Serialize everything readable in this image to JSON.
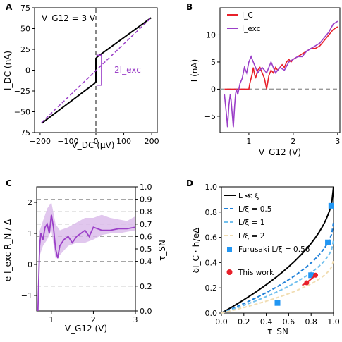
{
  "panels": [
    "A",
    "B",
    "C",
    "D"
  ],
  "chart_data": [
    {
      "panel": "A",
      "type": "line",
      "annotation": "V_G12 = 3 V",
      "xlabel": "V_DC (μV)",
      "ylabel": "I_DC (nA)",
      "xlim": [
        -220,
        220
      ],
      "ylim": [
        -75,
        75
      ],
      "xticks": [
        -200,
        -100,
        0,
        100,
        200
      ],
      "yticks": [
        -75,
        -50,
        -25,
        0,
        25,
        50,
        75
      ],
      "gap_label": "2I_exc",
      "colors": {
        "data": "#000000",
        "fit": "#9b3fc8",
        "guide": "#888888"
      },
      "series": [
        {
          "style": "solid-black",
          "x": [
            -195,
            -5,
            -5,
            0,
            0,
            5,
            5,
            198
          ],
          "y": [
            -64,
            -16,
            -16,
            -14,
            14,
            16,
            16,
            63
          ]
        },
        {
          "style": "dashed-purple",
          "x": [
            -195,
            198
          ],
          "y": [
            -63,
            63
          ]
        }
      ]
    },
    {
      "panel": "B",
      "type": "line",
      "xlabel": "V_G12 (V)",
      "ylabel": "I (nA)",
      "xlim": [
        0.35,
        3.05
      ],
      "ylim": [
        -8,
        15
      ],
      "xticks": [
        1,
        2,
        3
      ],
      "yticks": [
        -5,
        0,
        5,
        10
      ],
      "legend": [
        "I_C",
        "I_exc"
      ],
      "colors": {
        "I_C": "#e8202a",
        "I_exc": "#9b3fc8"
      },
      "series": [
        {
          "name": "I_C",
          "x": [
            0.45,
            1.0,
            1.02,
            1.05,
            1.08,
            1.1,
            1.12,
            1.15,
            1.2,
            1.25,
            1.3,
            1.35,
            1.4,
            1.45,
            1.5,
            1.55,
            1.6,
            1.65,
            1.7,
            1.75,
            1.8,
            1.85,
            1.9,
            1.95,
            2.0,
            2.1,
            2.2,
            2.3,
            2.4,
            2.5,
            2.6,
            2.7,
            2.8,
            2.9,
            3.0
          ],
          "y": [
            0,
            0,
            1,
            2,
            3,
            4,
            3,
            2,
            3.5,
            4,
            3,
            2,
            0,
            2.5,
            3.5,
            3,
            4,
            3.5,
            4,
            4.5,
            4,
            5,
            5.5,
            5,
            5.5,
            6,
            6.5,
            7,
            7.5,
            7.5,
            8,
            9,
            10,
            11,
            11.5
          ]
        },
        {
          "name": "I_exc",
          "x": [
            0.45,
            0.5,
            0.52,
            0.55,
            0.58,
            0.6,
            0.65,
            0.68,
            0.7,
            0.72,
            0.75,
            0.8,
            0.85,
            0.9,
            0.95,
            1.0,
            1.05,
            1.1,
            1.15,
            1.2,
            1.3,
            1.4,
            1.5,
            1.55,
            1.6,
            1.7,
            1.8,
            1.9,
            2.0,
            2.1,
            2.2,
            2.3,
            2.4,
            2.5,
            2.6,
            2.7,
            2.8,
            2.9,
            3.0
          ],
          "y": [
            -1,
            -5,
            -7,
            -3,
            -1,
            -2,
            -7,
            -3,
            -1,
            0,
            -1,
            1,
            2,
            4,
            3,
            5,
            6,
            5,
            4,
            3,
            4,
            3,
            5,
            4,
            3,
            4,
            3.5,
            5,
            5.5,
            6,
            6,
            7,
            7.5,
            8,
            8.5,
            9.5,
            10.5,
            12,
            12.5
          ]
        }
      ]
    },
    {
      "panel": "C",
      "type": "line",
      "xlabel": "V_G12 (V)",
      "ylabel": "e I_exc R_N / Δ",
      "right_ylabel": "τ_SN",
      "xlim": [
        0.65,
        3.0
      ],
      "ylim": [
        -1.5,
        2.5
      ],
      "xticks": [
        1,
        2,
        3
      ],
      "yticks": [
        -1,
        0,
        1,
        2
      ],
      "right_yticks": [
        0.0,
        0.2,
        0.4,
        0.5,
        0.6,
        0.7,
        0.8,
        0.9,
        1.0
      ],
      "right_guides": [
        0.2,
        0.4,
        0.6,
        0.7,
        0.8,
        0.9
      ],
      "colors": {
        "line": "#9b3fc8",
        "band": "#d9b9ea",
        "guide": "#999999"
      },
      "series": [
        {
          "name": "main",
          "x": [
            0.68,
            0.72,
            0.75,
            0.8,
            0.85,
            0.9,
            0.95,
            1.0,
            1.05,
            1.1,
            1.15,
            1.2,
            1.3,
            1.4,
            1.5,
            1.6,
            1.7,
            1.8,
            1.9,
            2.0,
            2.2,
            2.4,
            2.6,
            2.8,
            3.0
          ],
          "y": [
            -1.5,
            0.6,
            1.0,
            0.8,
            1.2,
            1.3,
            1.0,
            1.6,
            1.2,
            0.5,
            0.2,
            0.6,
            0.8,
            0.9,
            0.7,
            0.9,
            1.0,
            1.1,
            0.9,
            1.2,
            1.1,
            1.1,
            1.15,
            1.15,
            1.2
          ]
        },
        {
          "name": "upper",
          "x": [
            0.7,
            0.8,
            0.9,
            1.0,
            1.1,
            1.2,
            1.4,
            1.6,
            1.8,
            2.0,
            2.2,
            2.4,
            2.6,
            2.8,
            3.0
          ],
          "y": [
            1.0,
            1.4,
            1.8,
            2.0,
            1.3,
            1.1,
            1.2,
            1.35,
            1.5,
            1.5,
            1.6,
            1.5,
            1.45,
            1.4,
            1.55
          ]
        },
        {
          "name": "lower",
          "x": [
            0.7,
            0.8,
            0.9,
            1.0,
            1.1,
            1.2,
            1.4,
            1.6,
            1.8,
            2.0,
            2.2,
            2.4,
            2.6,
            2.8,
            3.0
          ],
          "y": [
            0.2,
            0.6,
            0.8,
            1.1,
            0.2,
            0.3,
            0.6,
            0.7,
            0.7,
            0.8,
            0.95,
            1.0,
            1.0,
            1.05,
            1.1
          ]
        }
      ]
    },
    {
      "panel": "D",
      "type": "line",
      "xlabel": "τ_SN",
      "ylabel": "δI_C · ħ/eΔ",
      "xlim": [
        0,
        1
      ],
      "ylim": [
        0,
        1
      ],
      "xticks": [
        0.0,
        0.2,
        0.4,
        0.6,
        0.8,
        1.0
      ],
      "yticks": [
        0.0,
        0.2,
        0.4,
        0.6,
        0.8,
        1.0
      ],
      "legend": [
        "L ≪ ξ",
        "L/ξ = 0.5",
        "L/ξ = 1",
        "L/ξ = 2",
        "Furusaki L/ξ = 0.56",
        "This work"
      ],
      "colors": {
        "L≪ξ": "#000000",
        "0.5": "#1e7fd8",
        "1": "#72c0ee",
        "2": "#f1ddb2",
        "furusaki": "#2196f3",
        "this_work": "#e8202a"
      },
      "series": [
        {
          "name": "Furusaki L/ξ = 0.56",
          "x": [
            0.5,
            0.8,
            0.95,
            0.98
          ],
          "y": [
            0.08,
            0.3,
            0.56,
            0.85
          ]
        },
        {
          "name": "This work",
          "x": [
            0.72,
            0.76,
            0.8,
            0.84
          ],
          "y": [
            0.22,
            0.24,
            0.27,
            0.3
          ]
        }
      ]
    }
  ]
}
